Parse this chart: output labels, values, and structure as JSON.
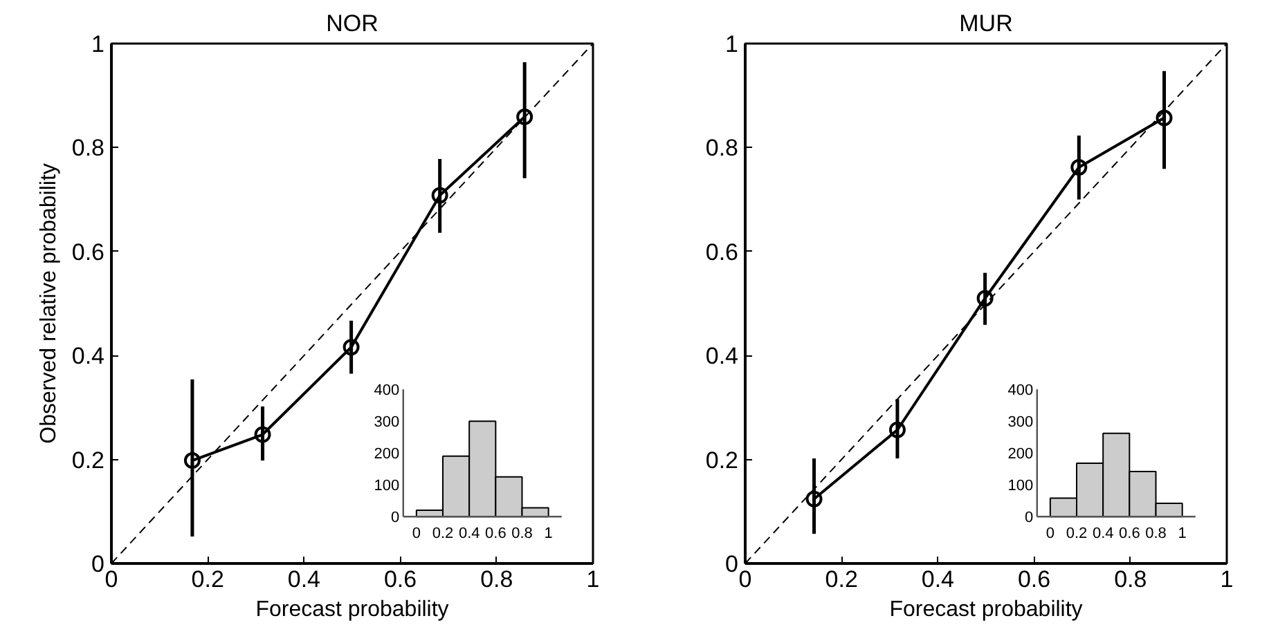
{
  "chart_data": [
    {
      "type": "line",
      "title": "NOR",
      "xlabel": "Forecast probability",
      "ylabel": "Observed relative probability",
      "xlim": [
        0,
        1
      ],
      "ylim": [
        0,
        1
      ],
      "xticks": [
        0,
        0.2,
        0.4,
        0.6,
        0.8,
        1
      ],
      "yticks": [
        0,
        0.2,
        0.4,
        0.6,
        0.8,
        1
      ],
      "series": [
        {
          "x": [
            0,
            1
          ],
          "values": [
            0,
            1
          ],
          "color": "#000000",
          "line_style": "dashed",
          "marker": "none"
        },
        {
          "x": [
            0.168,
            0.314,
            0.498,
            0.682,
            0.858
          ],
          "values": [
            0.198,
            0.248,
            0.416,
            0.708,
            0.859
          ],
          "color": "#000000",
          "line_style": "solid",
          "marker": "circle",
          "errors": [
            [
              0.052,
              0.354
            ],
            [
              0.198,
              0.302
            ],
            [
              0.365,
              0.467
            ],
            [
              0.636,
              0.778
            ],
            [
              0.741,
              0.964
            ]
          ]
        }
      ]
    },
    {
      "type": "histogram",
      "bins": [
        0,
        0.2,
        0.4,
        0.6,
        0.8,
        1
      ],
      "values": [
        20,
        190,
        300,
        125,
        28
      ],
      "color": "#cccccc",
      "xlim": [
        -0.1,
        1.1
      ],
      "ylim": [
        0,
        400
      ],
      "xticks": [
        0,
        0.2,
        0.4,
        0.6,
        0.8,
        1
      ],
      "yticks": [
        0,
        100,
        200,
        300,
        400
      ]
    },
    {
      "type": "line",
      "title": "MUR",
      "xlabel": "Forecast probability",
      "xlim": [
        0,
        1
      ],
      "ylim": [
        0,
        1
      ],
      "xticks": [
        0,
        0.2,
        0.4,
        0.6,
        0.8,
        1
      ],
      "yticks": [
        0,
        0.2,
        0.4,
        0.6,
        0.8,
        1
      ],
      "series": [
        {
          "x": [
            0,
            1
          ],
          "values": [
            0,
            1
          ],
          "color": "#000000",
          "line_style": "dashed",
          "marker": "none"
        },
        {
          "x": [
            0.143,
            0.316,
            0.498,
            0.693,
            0.87
          ],
          "values": [
            0.124,
            0.257,
            0.51,
            0.762,
            0.857
          ],
          "color": "#000000",
          "line_style": "solid",
          "marker": "circle",
          "errors": [
            [
              0.057,
              0.202
            ],
            [
              0.202,
              0.316
            ],
            [
              0.459,
              0.559
            ],
            [
              0.7,
              0.823
            ],
            [
              0.759,
              0.947
            ]
          ]
        }
      ]
    },
    {
      "type": "histogram",
      "bins": [
        0,
        0.2,
        0.4,
        0.6,
        0.8,
        1
      ],
      "values": [
        58,
        168,
        262,
        142,
        42
      ],
      "color": "#cccccc",
      "xlim": [
        -0.1,
        1.1
      ],
      "ylim": [
        0,
        400
      ],
      "xticks": [
        0,
        0.2,
        0.4,
        0.6,
        0.8,
        1
      ],
      "yticks": [
        0,
        100,
        200,
        300,
        400
      ]
    }
  ]
}
